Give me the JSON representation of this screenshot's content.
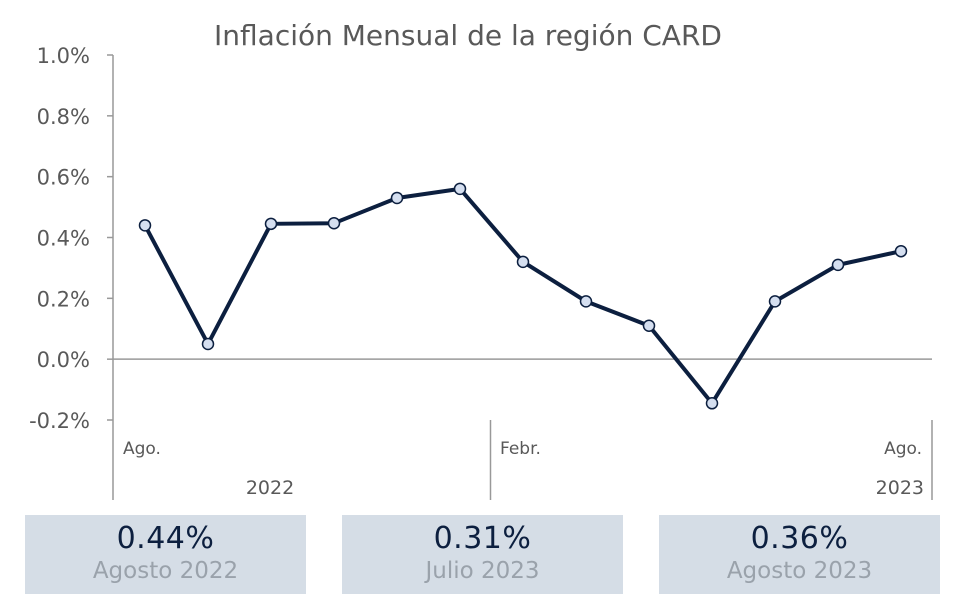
{
  "chart_data": {
    "type": "line",
    "title": "Inflación Mensual de la región CARD",
    "xlabel": "",
    "ylabel": "",
    "ylim": [
      -0.2,
      1.0
    ],
    "y_ticks": [
      "1.0%",
      "0.8%",
      "0.6%",
      "0.4%",
      "0.2%",
      "0.0%",
      "-0.2%"
    ],
    "y_tick_values": [
      1.0,
      0.8,
      0.6,
      0.4,
      0.2,
      0.0,
      -0.2
    ],
    "x": [
      "2022-08",
      "2022-09",
      "2022-10",
      "2022-11",
      "2022-12",
      "2023-01",
      "2023-02",
      "2023-03",
      "2023-04",
      "2023-05",
      "2023-06",
      "2023-07",
      "2023-08"
    ],
    "series": [
      {
        "values": [
          0.44,
          0.05,
          0.445,
          0.447,
          0.53,
          0.56,
          0.32,
          0.19,
          0.11,
          -0.145,
          0.19,
          0.31,
          0.355
        ]
      }
    ],
    "x_month_labels": [
      {
        "text": "Ago.",
        "index": 0
      },
      {
        "text": "Febr.",
        "index": 6
      },
      {
        "text": "Ago.",
        "index": 12
      }
    ],
    "x_year_labels": [
      {
        "text": "2022",
        "index": 2.5
      },
      {
        "text": "2023",
        "index": 12
      }
    ],
    "grid": false,
    "colors": {
      "line": "#0c1f3f",
      "marker_fill": "#d5dff0",
      "axis": "#999999"
    }
  },
  "cards": [
    {
      "value": "0.44%",
      "label": "Agosto 2022"
    },
    {
      "value": "0.31%",
      "label": "Julio 2023"
    },
    {
      "value": "0.36%",
      "label": "Agosto 2023"
    }
  ]
}
